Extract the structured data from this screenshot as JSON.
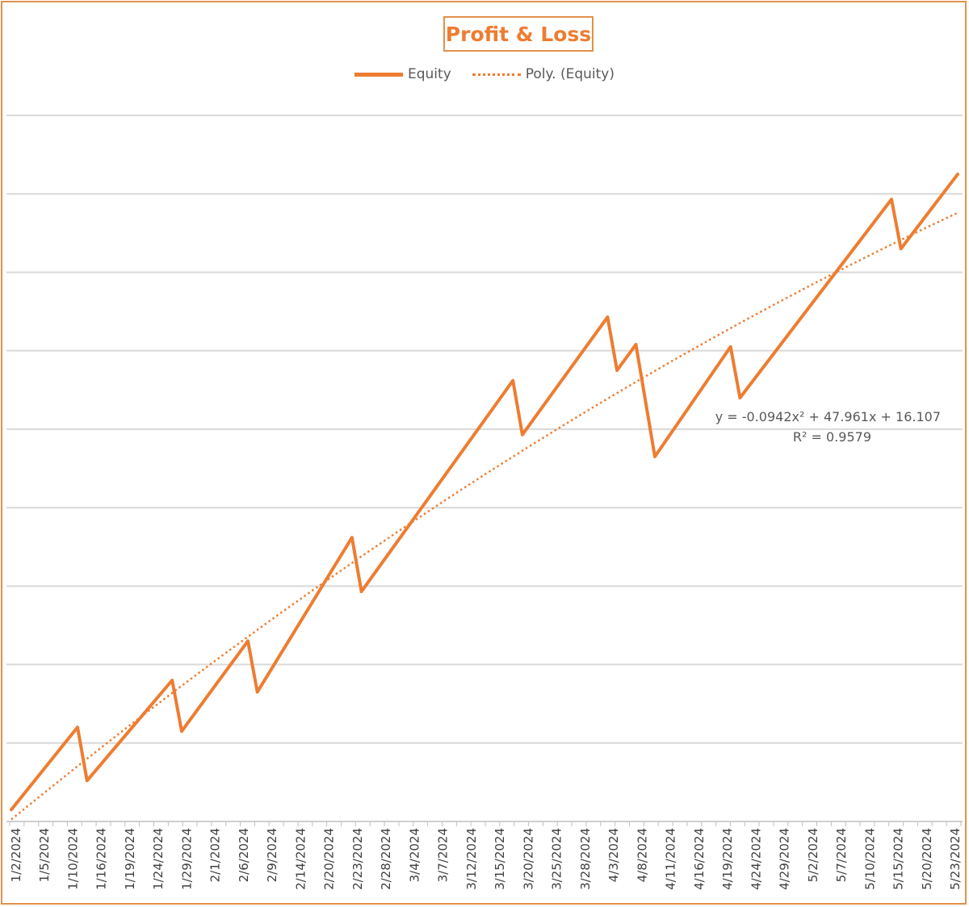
{
  "chart_data": {
    "type": "line",
    "title": "Profit & Loss",
    "legend": {
      "placement": "top",
      "entries": [
        "Equity",
        "Poly. (Equity)"
      ]
    },
    "xlabel": "",
    "ylabel": "",
    "grid": true,
    "y_tick_labels_visible": false,
    "x_tick_labels": [
      "1/2/2024",
      "1/5/2024",
      "1/10/2024",
      "1/16/2024",
      "1/19/2024",
      "1/24/2024",
      "1/29/2024",
      "2/1/2024",
      "2/6/2024",
      "2/9/2024",
      "2/14/2024",
      "2/20/2024",
      "2/23/2024",
      "2/28/2024",
      "3/4/2024",
      "3/7/2024",
      "3/12/2024",
      "3/15/2024",
      "3/20/2024",
      "3/25/2024",
      "3/28/2024",
      "4/3/2024",
      "4/8/2024",
      "4/11/2024",
      "4/16/2024",
      "4/19/2024",
      "4/24/2024",
      "4/29/2024",
      "5/2/2024",
      "5/7/2024",
      "5/10/2024",
      "5/15/2024",
      "5/20/2024",
      "5/23/2024"
    ],
    "point_count": 101,
    "ylim": [
      0,
      9
    ],
    "series": [
      {
        "name": "Equity",
        "style": "solid",
        "color": "#ED7D31",
        "points": [
          {
            "i": 0,
            "y": 0.15
          },
          {
            "i": 7,
            "y": 1.2
          },
          {
            "i": 8,
            "y": 0.52
          },
          {
            "i": 17,
            "y": 1.8
          },
          {
            "i": 18,
            "y": 1.15
          },
          {
            "i": 25,
            "y": 2.3
          },
          {
            "i": 26,
            "y": 1.65
          },
          {
            "i": 36,
            "y": 3.62
          },
          {
            "i": 37,
            "y": 2.93
          },
          {
            "i": 53,
            "y": 5.62
          },
          {
            "i": 54,
            "y": 4.93
          },
          {
            "i": 63,
            "y": 6.43
          },
          {
            "i": 64,
            "y": 5.75
          },
          {
            "i": 66,
            "y": 6.08
          },
          {
            "i": 68,
            "y": 4.65
          },
          {
            "i": 76,
            "y": 6.05
          },
          {
            "i": 77,
            "y": 5.4
          },
          {
            "i": 93,
            "y": 7.93
          },
          {
            "i": 94,
            "y": 7.3
          },
          {
            "i": 100,
            "y": 8.25
          }
        ]
      },
      {
        "name": "Poly. (Equity)",
        "style": "dotted",
        "color": "#ED7D31",
        "kind": "polynomial-trendline"
      }
    ],
    "trendline_equation": "y = -0.0942x² + 47.961x + 16.107",
    "trendline_r2": "R² = 0.9579"
  }
}
